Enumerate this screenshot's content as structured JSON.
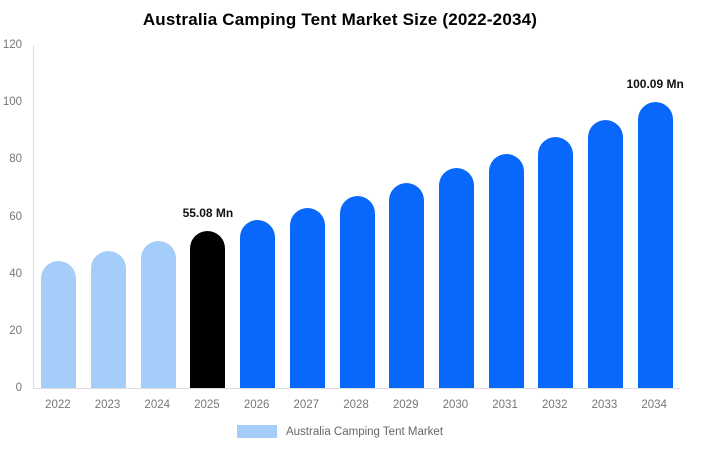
{
  "title": "Australia Camping Tent Market Size (2022-2034)",
  "legend": {
    "label": "Australia Camping Tent Market",
    "swatch_color": "#A5CDFA"
  },
  "colors": {
    "historical_bar": "#A5CDFA",
    "base_year_bar": "#000000",
    "forecast_bar": "#0868FB",
    "axis_line": "#DDDDDD",
    "tick_label": "#777777",
    "legend_text": "#666666",
    "data_label": "#111111",
    "background": "#FFFFFF"
  },
  "chart_data": {
    "type": "bar",
    "title": "Australia Camping Tent Market Size (2022-2034)",
    "categories": [
      "2022",
      "2023",
      "2024",
      "2025",
      "2026",
      "2027",
      "2028",
      "2029",
      "2030",
      "2031",
      "2032",
      "2033",
      "2034"
    ],
    "values": [
      44.5,
      48.0,
      51.5,
      55.08,
      58.9,
      62.9,
      67.2,
      71.8,
      76.8,
      82.0,
      87.7,
      93.7,
      100.09
    ],
    "bar_roles": [
      "historical",
      "historical",
      "historical",
      "base_year",
      "forecast",
      "forecast",
      "forecast",
      "forecast",
      "forecast",
      "forecast",
      "forecast",
      "forecast",
      "forecast"
    ],
    "data_labels": [
      null,
      null,
      null,
      "55.08 Mn",
      null,
      null,
      null,
      null,
      null,
      null,
      null,
      null,
      "100.09 Mn"
    ],
    "xlabel": "",
    "ylabel": "",
    "ylim": [
      0,
      120
    ],
    "yticks": [
      0,
      20,
      40,
      60,
      80,
      100,
      120
    ],
    "grid": false,
    "legend_position": "bottom",
    "legend_entries": [
      "Australia Camping Tent Market"
    ]
  }
}
